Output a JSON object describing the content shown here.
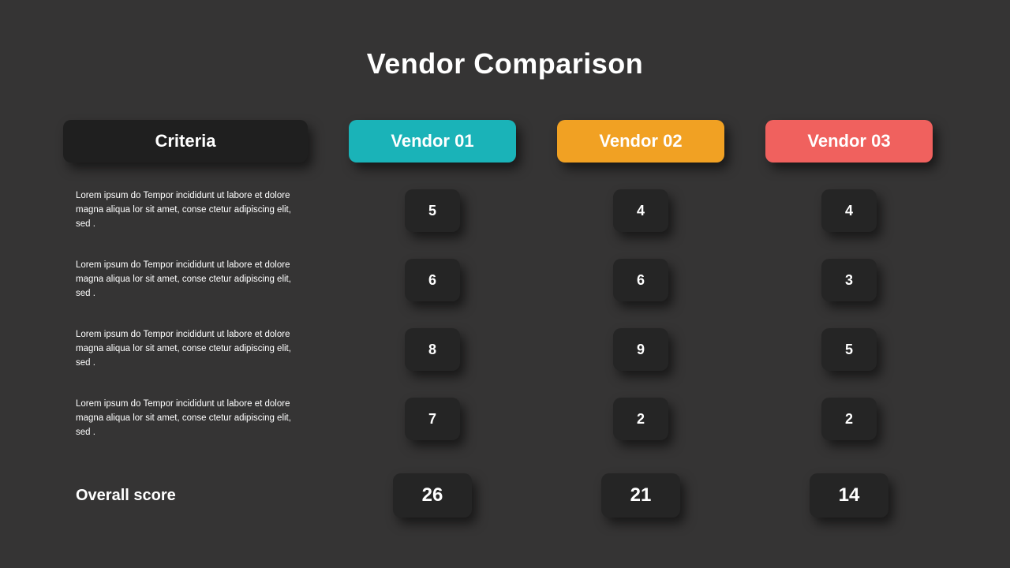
{
  "title": "Vendor Comparison",
  "styling": {
    "background_color": "#353434",
    "text_color": "#ffffff",
    "box_color": "#252525",
    "criteria_header_bg": "#1f1f1f",
    "title_fontsize": 36,
    "header_fontsize": 22,
    "criteria_fontsize": 11.5,
    "score_fontsize": 18,
    "overall_fontsize": 24,
    "border_radius": 10,
    "shadow": "6px 8px 14px rgba(0,0,0,0.55)"
  },
  "headers": {
    "criteria": "Criteria",
    "vendors": [
      {
        "label": "Vendor 01",
        "color": "#1ab3b8"
      },
      {
        "label": "Vendor 02",
        "color": "#f1a123"
      },
      {
        "label": "Vendor 03",
        "color": "#f0615e"
      }
    ]
  },
  "rows": [
    {
      "criteria": "Lorem ipsum do Tempor incididunt ut labore et dolore magna aliqua lor sit amet, conse ctetur adipiscing elit, sed .",
      "scores": [
        "5",
        "4",
        "4"
      ]
    },
    {
      "criteria": "Lorem ipsum do Tempor incididunt ut labore et dolore magna aliqua lor sit amet, conse ctetur adipiscing elit, sed .",
      "scores": [
        "6",
        "6",
        "3"
      ]
    },
    {
      "criteria": "Lorem ipsum do Tempor incididunt ut labore et dolore magna aliqua lor sit amet, conse ctetur adipiscing elit, sed .",
      "scores": [
        "8",
        "9",
        "5"
      ]
    },
    {
      "criteria": "Lorem ipsum do Tempor incididunt ut labore et dolore magna aliqua lor sit amet, conse ctetur adipiscing elit, sed .",
      "scores": [
        "7",
        "2",
        "2"
      ]
    }
  ],
  "overall": {
    "label": "Overall score",
    "scores": [
      "26",
      "21",
      "14"
    ]
  }
}
